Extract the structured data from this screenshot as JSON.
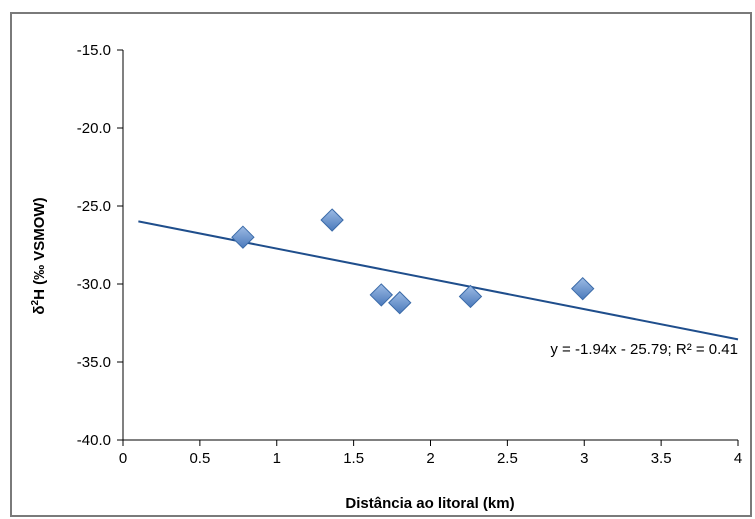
{
  "chart_data": {
    "type": "scatter",
    "xlabel": "Distância ao litoral (km)",
    "ylabel_parts": {
      "delta": "δ",
      "sup": "2",
      "rest": "H (‰ VSMOW)"
    },
    "xlim": [
      0,
      4
    ],
    "ylim": [
      -40,
      -15
    ],
    "x_ticks": [
      0,
      0.5,
      1,
      1.5,
      2,
      2.5,
      3,
      3.5,
      4
    ],
    "x_tick_labels": [
      "0",
      "0.5",
      "1",
      "1.5",
      "2",
      "2.5",
      "3",
      "3.5",
      "4"
    ],
    "y_ticks": [
      -15,
      -20,
      -25,
      -30,
      -35,
      -40
    ],
    "y_tick_labels": [
      "-15.0",
      "-20.0",
      "-25.0",
      "-30.0",
      "-35.0",
      "-40.0"
    ],
    "grid": false,
    "series": [
      {
        "x": [
          0.78,
          1.36,
          1.68,
          1.8,
          2.26,
          2.99
        ],
        "y": [
          -27.0,
          -25.9,
          -30.7,
          -31.2,
          -30.8,
          -30.3
        ],
        "marker": "diamond",
        "color": "#4f81bd"
      }
    ],
    "trendline": {
      "slope": -1.94,
      "intercept": -25.79,
      "x_range": [
        0.1,
        4
      ],
      "color": "#1f4e8c",
      "equation_label": "y = -1.94x - 25.79; R² = 0.41"
    }
  }
}
